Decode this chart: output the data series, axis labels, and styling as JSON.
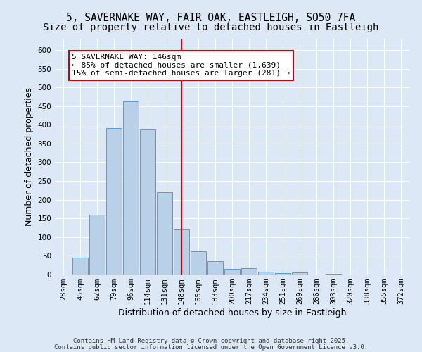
{
  "title1": "5, SAVERNAKE WAY, FAIR OAK, EASTLEIGH, SO50 7FA",
  "title2": "Size of property relative to detached houses in Eastleigh",
  "xlabel": "Distribution of detached houses by size in Eastleigh",
  "ylabel": "Number of detached properties",
  "bar_labels": [
    "28sqm",
    "45sqm",
    "62sqm",
    "79sqm",
    "96sqm",
    "114sqm",
    "131sqm",
    "148sqm",
    "165sqm",
    "183sqm",
    "200sqm",
    "217sqm",
    "234sqm",
    "251sqm",
    "269sqm",
    "286sqm",
    "303sqm",
    "320sqm",
    "338sqm",
    "355sqm",
    "372sqm"
  ],
  "bar_values": [
    0,
    45,
    160,
    392,
    462,
    390,
    220,
    122,
    62,
    35,
    15,
    17,
    8,
    4,
    5,
    0,
    2,
    0,
    0,
    0,
    0
  ],
  "bar_color": "#b8d0e8",
  "bar_edge_color": "#5b9bd5",
  "vline_x": 7,
  "vline_color": "#cc0000",
  "annotation_line1": "5 SAVERNAKE WAY: 146sqm",
  "annotation_line2": "← 85% of detached houses are smaller (1,639)",
  "annotation_line3": "15% of semi-detached houses are larger (281) →",
  "annotation_box_color": "#ffffff",
  "annotation_box_edge": "#cc0000",
  "ylim": [
    0,
    630
  ],
  "yticks": [
    0,
    50,
    100,
    150,
    200,
    250,
    300,
    350,
    400,
    450,
    500,
    550,
    600
  ],
  "background_color": "#dce8f5",
  "grid_color": "#ffffff",
  "footer_line1": "Contains HM Land Registry data © Crown copyright and database right 2025.",
  "footer_line2": "Contains public sector information licensed under the Open Government Licence v3.0.",
  "title1_fontsize": 10.5,
  "title2_fontsize": 10,
  "axis_label_fontsize": 9,
  "tick_fontsize": 7.5,
  "annotation_fontsize": 8,
  "footer_fontsize": 6.5
}
